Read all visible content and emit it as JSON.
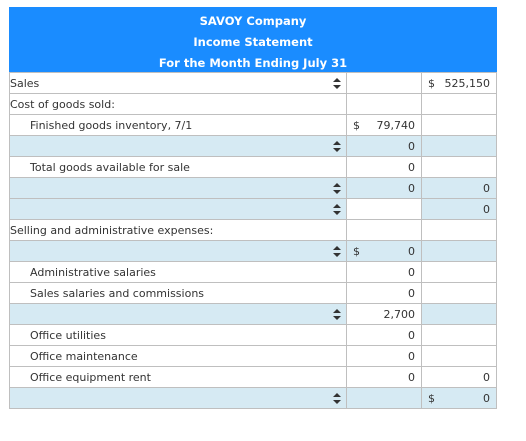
{
  "header": {
    "company": "SAVOY Company",
    "statement": "Income Statement",
    "period": "For the Month Ending July 31"
  },
  "icons": {
    "selector": "sort-arrows-icon"
  },
  "colors": {
    "header_bg": "#1a8cff",
    "input_row_bg": "#d6eaf3"
  },
  "rows": {
    "sales_label": "Sales",
    "sales_symbol": "$",
    "sales_value": "525,150",
    "cogs_label": "Cost of goods sold:",
    "fgi_label": "Finished goods inventory, 7/1",
    "fgi_symbol": "$",
    "fgi_value": "79,740",
    "r4_value": "0",
    "tgas_label": "Total goods available for sale",
    "tgas_value": "0",
    "r6_value2": "0",
    "r6_value3": "0",
    "r7_value3": "0",
    "sae_label": "Selling and administrative expenses:",
    "r9_symbol": "$",
    "r9_value": "0",
    "admin_label": "Administrative salaries",
    "admin_value": "0",
    "sales_sal_label": "Sales salaries and commissions",
    "sales_sal_value": "0",
    "r12_value": "2,700",
    "util_label": "Office utilities",
    "util_value": "0",
    "maint_label": "Office maintenance",
    "maint_value": "0",
    "rent_label": "Office equipment rent",
    "rent_value2": "0",
    "rent_value3": "0",
    "r17_symbol": "$",
    "r17_value": "0"
  }
}
